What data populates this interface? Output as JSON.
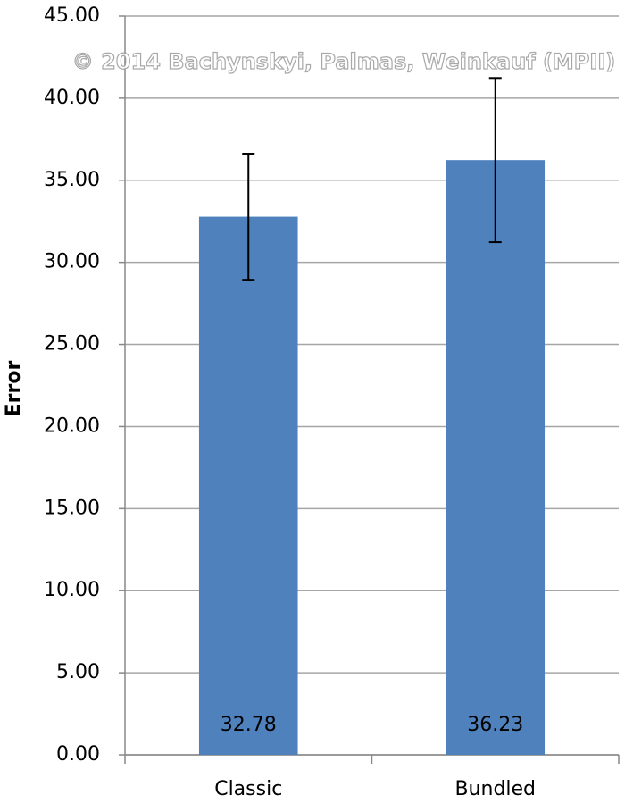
{
  "chart_data": {
    "type": "bar",
    "watermark": "© 2014 Bachynskyi, Palmas, Weinkauf (MPII)",
    "y_label": "Error",
    "categories": [
      "Classic",
      "Bundled"
    ],
    "values": [
      32.78,
      36.23
    ],
    "errors": [
      3.84,
      5.0
    ],
    "color": "#4f81bd",
    "ylim": [
      0,
      45
    ],
    "yticks": [
      {
        "value": 0,
        "label": "0.00"
      },
      {
        "value": 5,
        "label": "5.00"
      },
      {
        "value": 10,
        "label": "10.00"
      },
      {
        "value": 15,
        "label": "15.00"
      },
      {
        "value": 20,
        "label": "20.00"
      },
      {
        "value": 25,
        "label": "25.00"
      },
      {
        "value": 30,
        "label": "30.00"
      },
      {
        "value": 35,
        "label": "35.00"
      },
      {
        "value": 40,
        "label": "40.00"
      },
      {
        "value": 45,
        "label": "45.00"
      }
    ],
    "grid": true
  }
}
